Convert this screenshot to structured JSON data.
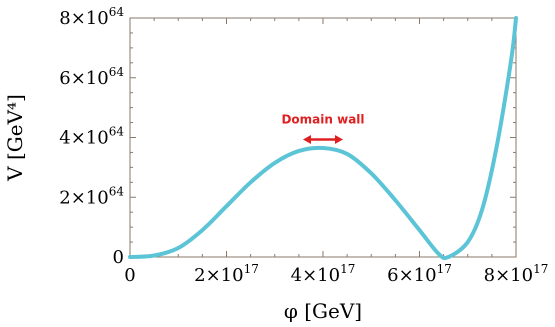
{
  "chart_data": {
    "type": "line",
    "xlabel": "φ [GeV]",
    "ylabel": "V [GeV⁴]",
    "xlim": [
      0,
      8e+17
    ],
    "ylim": [
      0,
      8e+64
    ],
    "x_ticks": [
      {
        "value": 0,
        "mantissa": "0",
        "exp": ""
      },
      {
        "value": 2e+17,
        "mantissa": "2×10",
        "exp": "17"
      },
      {
        "value": 4e+17,
        "mantissa": "4×10",
        "exp": "17"
      },
      {
        "value": 6e+17,
        "mantissa": "6×10",
        "exp": "17"
      },
      {
        "value": 8e+17,
        "mantissa": "8×10",
        "exp": "17"
      }
    ],
    "y_ticks": [
      {
        "value": 0,
        "mantissa": "0",
        "exp": ""
      },
      {
        "value": 2e+64,
        "mantissa": "2×10",
        "exp": "64"
      },
      {
        "value": 4e+64,
        "mantissa": "4×10",
        "exp": "64"
      },
      {
        "value": 6e+64,
        "mantissa": "6×10",
        "exp": "64"
      },
      {
        "value": 8e+64,
        "mantissa": "8×10",
        "exp": "64"
      }
    ],
    "series": [
      {
        "color": "#5bc4d6",
        "x": [
          0,
          5e+16,
          1e+17,
          1.5e+17,
          2e+17,
          2.5e+17,
          3e+17,
          3.5e+17,
          4e+17,
          4.5e+17,
          5e+17,
          5.5e+17,
          6e+17,
          6.4e+17,
          6.6e+17,
          7e+17,
          7.3e+17,
          7.6e+17,
          7.9e+17,
          8e+17
        ],
        "y": [
          0,
          5e+62,
          3e+63,
          9e+63,
          1.7e+64,
          2.5e+64,
          3.15e+64,
          3.55e+64,
          3.65e+64,
          3.45e+64,
          2.8e+64,
          1.9e+64,
          9e+63,
          1e+63,
          0.0,
          5e+63,
          1.6e+64,
          3.7e+64,
          6.6e+64,
          8e+64
        ]
      }
    ],
    "annotation": {
      "text": "Domain wall",
      "color": "#e02020",
      "x_center": 4e+17,
      "y": 4e+64
    }
  }
}
